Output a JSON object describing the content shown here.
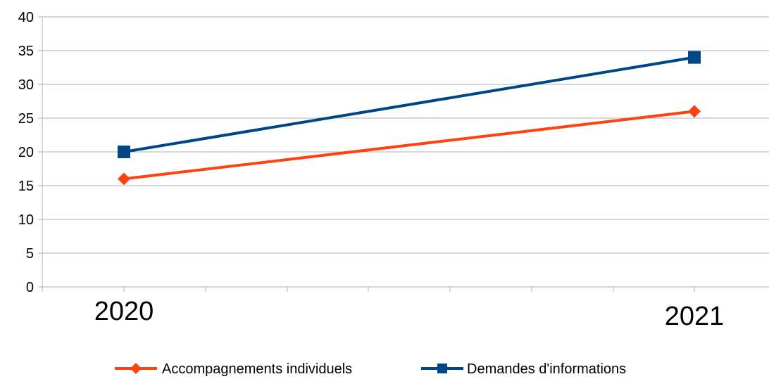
{
  "chart_data": {
    "type": "line",
    "title": "",
    "xlabel": "",
    "ylabel": "",
    "categories": [
      "2020",
      "2021"
    ],
    "ylim": [
      0,
      40
    ],
    "ytick_step": 5,
    "grid": true,
    "legend_position": "bottom",
    "series": [
      {
        "name": "Accompagnements individuels",
        "values": [
          16,
          26
        ],
        "color": "#ff420e",
        "marker": "diamond"
      },
      {
        "name": "Demandes d'informations",
        "values": [
          20,
          34
        ],
        "color": "#004586",
        "marker": "square"
      }
    ]
  }
}
